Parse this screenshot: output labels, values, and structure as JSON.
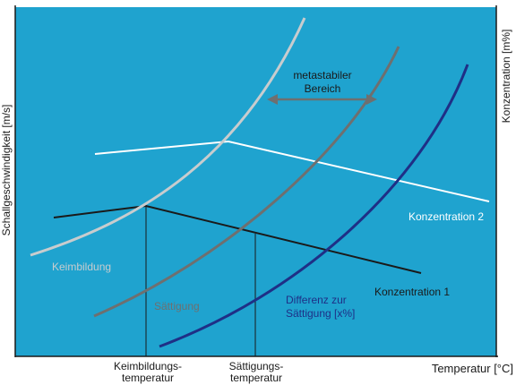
{
  "axes": {
    "left_label": "Schallgeschwindigkeit [m/s]",
    "right_label": "Konzentration [m%]",
    "x_label": "Temperatur [°C]"
  },
  "ticks": {
    "keimbildung": [
      "Keimbildungs-",
      "temperatur"
    ],
    "saettigung": [
      "Sättigungs-",
      "temperatur"
    ]
  },
  "annotations": {
    "metastable": [
      "metastabiler",
      "Bereich"
    ]
  },
  "curves": {
    "keimbildung": "Keimbildung",
    "saettigung": "Sättigung",
    "differenz": [
      "Differenz zur",
      "Sättigung [x%]"
    ]
  },
  "lines": {
    "konzentration_1": "Konzentration 1",
    "konzentration_2": "Konzentration 2"
  },
  "colors": {
    "background": "#1fa3cf",
    "keimbildung": "#c8ccce",
    "saettigung": "#6f6f6f",
    "differenz": "#1f2f86",
    "konzentration_1": "#1a1a1a",
    "konzentration_2": "#ffffff",
    "axis": "#1a1a1a"
  }
}
